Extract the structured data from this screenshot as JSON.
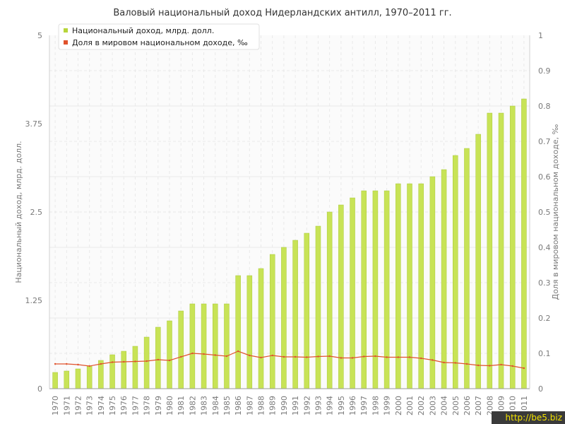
{
  "colors": {
    "bar": "#c8e356",
    "bar_edge": "#a9c93a",
    "line": "#e0522c",
    "grid": "#e9e9e9",
    "plot_bg": "#fbfbfb",
    "legend_marker_1": "#b7d53a",
    "legend_marker_2": "#e0522c"
  },
  "watermark": "http://be5.biz",
  "chart_data": {
    "type": "bar",
    "title": "Валовый национальный доход Нидерландских антилл, 1970–2011 гг.",
    "xlabel": "",
    "ylabel": "Национальный доход, млрд. долл.",
    "y2label": "Доля в мировом национальном доходе, ‰",
    "ylim": [
      0,
      5
    ],
    "y2lim": [
      0,
      1
    ],
    "y_ticks": [
      "0",
      "1.25",
      "2.5",
      "3.75",
      "5"
    ],
    "y2_ticks": [
      "0",
      "0.1",
      "0.2",
      "0.3",
      "0.4",
      "0.5",
      "0.6",
      "0.7",
      "0.8",
      "0.9",
      "1"
    ],
    "grid": true,
    "legend": "top-left",
    "categories": [
      "1970",
      "1971",
      "1972",
      "1973",
      "1974",
      "1975",
      "1976",
      "1977",
      "1978",
      "1979",
      "1980",
      "1981",
      "1982",
      "1983",
      "1984",
      "1985",
      "1986",
      "1987",
      "1988",
      "1989",
      "1990",
      "1991",
      "1992",
      "1993",
      "1994",
      "1995",
      "1996",
      "1997",
      "1998",
      "1999",
      "2000",
      "2001",
      "2002",
      "2003",
      "2004",
      "2005",
      "2006",
      "2007",
      "2008",
      "2009",
      "2010",
      "2011"
    ],
    "series": [
      {
        "name": "Национальный доход, млрд. долл.",
        "type": "bar",
        "axis": "left",
        "values": [
          0.23,
          0.25,
          0.28,
          0.32,
          0.4,
          0.48,
          0.53,
          0.6,
          0.73,
          0.87,
          0.96,
          1.1,
          1.2,
          1.2,
          1.2,
          1.2,
          1.6,
          1.6,
          1.7,
          1.9,
          2.0,
          2.1,
          2.2,
          2.3,
          2.5,
          2.6,
          2.7,
          2.8,
          2.8,
          2.8,
          2.9,
          2.9,
          2.9,
          3.0,
          3.1,
          3.3,
          3.4,
          3.6,
          3.9,
          3.9,
          4.0,
          4.1
        ]
      },
      {
        "name": "Доля в мировом национальном доходе, ‰",
        "type": "line",
        "axis": "right",
        "values": [
          0.07,
          0.07,
          0.068,
          0.064,
          0.07,
          0.075,
          0.076,
          0.077,
          0.078,
          0.082,
          0.08,
          0.09,
          0.1,
          0.098,
          0.095,
          0.092,
          0.106,
          0.094,
          0.088,
          0.094,
          0.09,
          0.09,
          0.089,
          0.091,
          0.092,
          0.087,
          0.087,
          0.091,
          0.092,
          0.089,
          0.089,
          0.089,
          0.086,
          0.081,
          0.074,
          0.073,
          0.07,
          0.066,
          0.065,
          0.068,
          0.064,
          0.058
        ]
      }
    ]
  }
}
